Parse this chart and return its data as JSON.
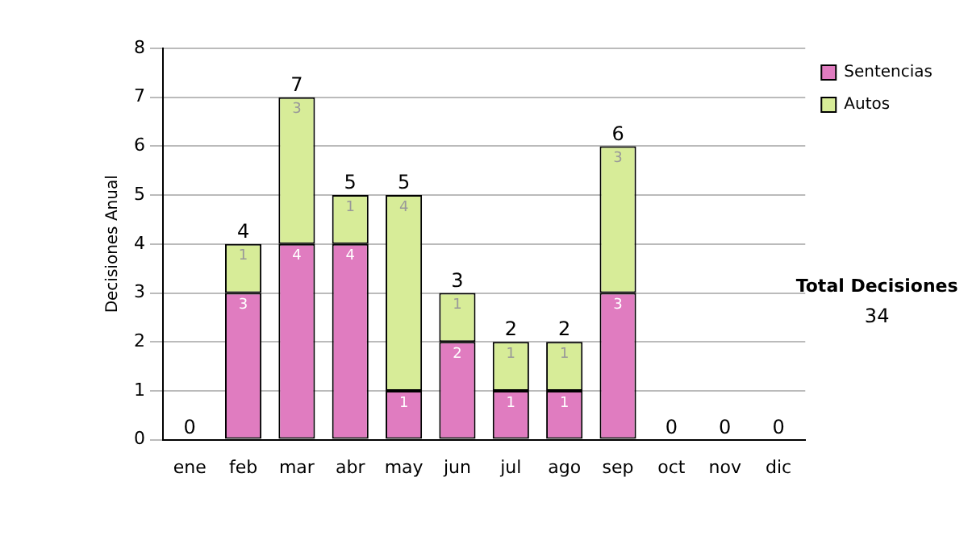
{
  "chart_data": {
    "type": "bar",
    "stacked": true,
    "ylabel": "Decisiones Anual",
    "categories": [
      "ene",
      "feb",
      "mar",
      "abr",
      "may",
      "jun",
      "jul",
      "ago",
      "sep",
      "oct",
      "nov",
      "dic"
    ],
    "series": [
      {
        "name": "Sentencias",
        "color": "#e07cc0",
        "values": [
          0,
          3,
          4,
          4,
          1,
          2,
          1,
          1,
          3,
          0,
          0,
          0
        ],
        "value_labels": [
          null,
          "3",
          "4",
          "4",
          "1",
          "2",
          "1",
          "1",
          "3",
          null,
          null,
          null
        ]
      },
      {
        "name": "Autos",
        "color": "#d7ec98",
        "values": [
          0,
          1,
          3,
          1,
          4,
          1,
          1,
          1,
          3,
          0,
          0,
          0
        ],
        "value_labels": [
          null,
          "1",
          "3",
          "1",
          "4",
          "1",
          "1",
          "1",
          "3",
          null,
          null,
          null
        ]
      }
    ],
    "totals": [
      "0",
      "4",
      "7",
      "5",
      "5",
      "3",
      "2",
      "2",
      "6",
      "0",
      "0",
      "0"
    ],
    "ylim": [
      0,
      8
    ],
    "yticks": [
      0,
      1,
      2,
      3,
      4,
      5,
      6,
      7,
      8
    ],
    "grid": "y",
    "legend": "right",
    "annotations": [
      "Total Decisiones",
      "34"
    ]
  }
}
